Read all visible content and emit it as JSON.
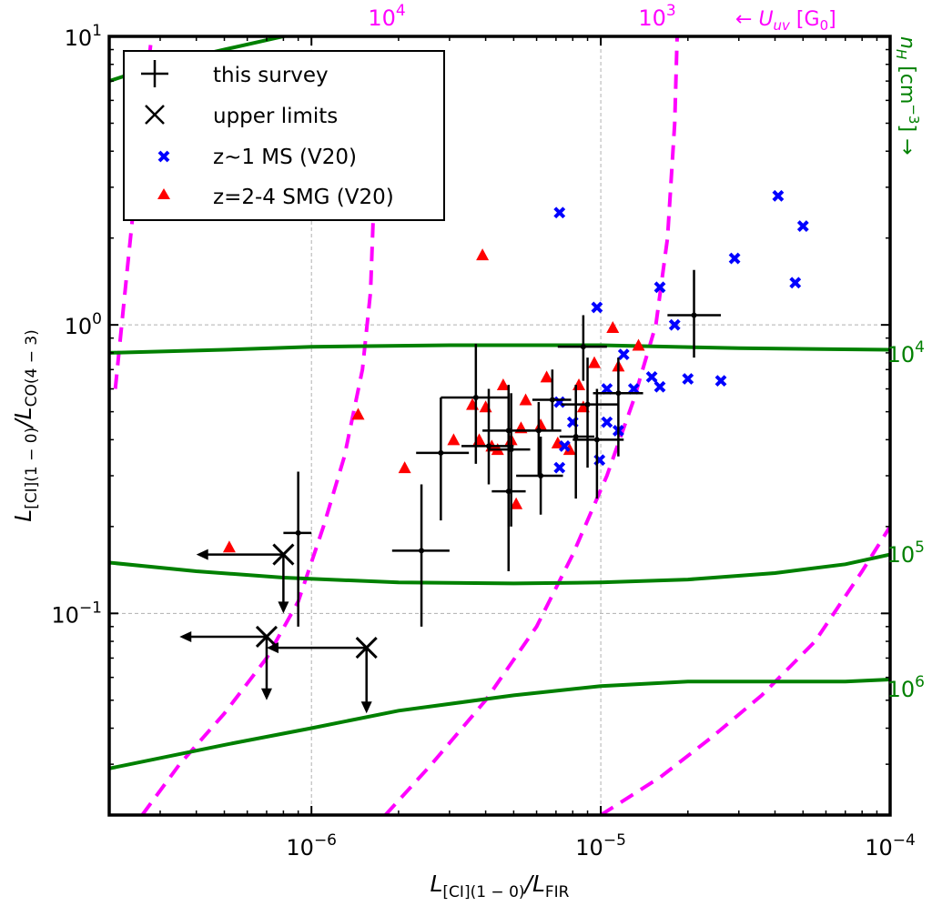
{
  "chart_data": {
    "type": "scatter",
    "x_scale": "log",
    "y_scale": "log",
    "xlim": [
      2e-07,
      0.0001
    ],
    "ylim": [
      0.02,
      10
    ],
    "xlabel": {
      "main": "L",
      "sub1": "[CI](1 − 0)",
      "mid": "/L",
      "sub2": "FIR"
    },
    "ylabel": {
      "main": "L",
      "sub1": "[CI](1 − 0)",
      "mid": "/L",
      "sub2": "CO(4 − 3)"
    },
    "x_ticks": [
      {
        "value": 1e-06,
        "base": "10",
        "exp": "−6"
      },
      {
        "value": 1e-05,
        "base": "10",
        "exp": "−5"
      },
      {
        "value": 0.0001,
        "base": "10",
        "exp": "−4"
      }
    ],
    "y_ticks": [
      {
        "value": 0.1,
        "base": "10",
        "exp": "−1"
      },
      {
        "value": 1,
        "base": "10",
        "exp": "0"
      },
      {
        "value": 10,
        "base": "10",
        "exp": "1"
      }
    ],
    "uv_label": {
      "arrow": "← ",
      "sym": "U",
      "sub": "uv",
      "unit_open": " [G",
      "unit_sub": "0",
      "unit_close": "]"
    },
    "nh_label": {
      "sym": "n",
      "sub": "H",
      "unit_open": " [cm",
      "unit_sup": "−3",
      "unit_close": "] →"
    },
    "colors": {
      "survey": "#000000",
      "ms": "#0000ff",
      "smg": "#ff0000",
      "uv_contour": "#ff00ff",
      "density_contour": "#008000",
      "grid": "#b0b0b0"
    },
    "legend": {
      "position": "upper-left",
      "entries": [
        {
          "marker": "plus",
          "label": "this survey"
        },
        {
          "marker": "x-large",
          "label": "upper limits"
        },
        {
          "marker": "x-blue",
          "label": "z~1 MS (V20)"
        },
        {
          "marker": "triangle-red",
          "label": "z=2-4 SMG (V20)"
        }
      ]
    },
    "uv_contours": [
      {
        "base": "10",
        "exp": "4",
        "points": [
          [
            2.1e-07,
            0.6
          ],
          [
            2.3e-07,
            1.5
          ],
          [
            2.6e-07,
            5
          ],
          [
            2.8e-07,
            10
          ],
          [
            2.8e-07,
            13
          ]
        ],
        "lower_branch": [
          [
            2.6e-07,
            0.02
          ],
          [
            3.5e-07,
            0.03
          ],
          [
            5e-07,
            0.045
          ],
          [
            7e-07,
            0.07
          ],
          [
            9e-07,
            0.11
          ],
          [
            1.1e-06,
            0.2
          ],
          [
            1.3e-06,
            0.35
          ],
          [
            1.5e-06,
            0.7
          ],
          [
            1.6e-06,
            1.3
          ],
          [
            1.65e-06,
            3
          ]
        ]
      },
      {
        "base": "10",
        "exp": "3",
        "points": [
          [
            1.8e-06,
            0.02
          ],
          [
            2.6e-06,
            0.03
          ],
          [
            4e-06,
            0.05
          ],
          [
            6e-06,
            0.09
          ],
          [
            8e-06,
            0.16
          ],
          [
            1.05e-05,
            0.3
          ],
          [
            1.3e-05,
            0.55
          ],
          [
            1.55e-05,
            1.0
          ],
          [
            1.7e-05,
            2
          ],
          [
            1.8e-05,
            5
          ],
          [
            1.85e-05,
            13
          ]
        ]
      },
      {
        "base": "",
        "exp": "",
        "points": [
          [
            1e-05,
            0.02
          ],
          [
            1.6e-05,
            0.027
          ],
          [
            2.4e-05,
            0.037
          ],
          [
            3.6e-05,
            0.052
          ],
          [
            5.5e-05,
            0.08
          ],
          [
            8e-05,
            0.14
          ],
          [
            0.0001,
            0.2
          ]
        ]
      }
    ],
    "density_contours": [
      {
        "base": "",
        "exp": "",
        "points": [
          [
            2e-07,
            7
          ],
          [
            3e-07,
            8
          ],
          [
            5e-07,
            9
          ],
          [
            8e-07,
            10
          ],
          [
            1.2e-06,
            11.5
          ],
          [
            1.8e-06,
            13
          ]
        ]
      },
      {
        "base": "10",
        "exp": "4",
        "points": [
          [
            2e-07,
            0.8
          ],
          [
            5e-07,
            0.82
          ],
          [
            1e-06,
            0.84
          ],
          [
            3e-06,
            0.85
          ],
          [
            1e-05,
            0.85
          ],
          [
            3e-05,
            0.83
          ],
          [
            0.0001,
            0.82
          ]
        ]
      },
      {
        "base": "10",
        "exp": "5",
        "points": [
          [
            2e-07,
            0.15
          ],
          [
            4e-07,
            0.14
          ],
          [
            8e-07,
            0.133
          ],
          [
            2e-06,
            0.128
          ],
          [
            5e-06,
            0.127
          ],
          [
            1e-05,
            0.128
          ],
          [
            2e-05,
            0.131
          ],
          [
            4e-05,
            0.138
          ],
          [
            7e-05,
            0.148
          ],
          [
            0.0001,
            0.16
          ]
        ]
      },
      {
        "base": "10",
        "exp": "6",
        "points": [
          [
            2e-07,
            0.029
          ],
          [
            5e-07,
            0.035
          ],
          [
            1e-06,
            0.04
          ],
          [
            2e-06,
            0.046
          ],
          [
            5e-06,
            0.052
          ],
          [
            1e-05,
            0.056
          ],
          [
            2e-05,
            0.058
          ],
          [
            4e-05,
            0.058
          ],
          [
            7e-05,
            0.058
          ],
          [
            0.0001,
            0.059
          ]
        ]
      }
    ],
    "survey": [
      {
        "x": 9e-07,
        "y": 0.19,
        "xlo": 8e-07,
        "xhi": 1e-06,
        "ylo": 0.09,
        "yhi": 0.31
      },
      {
        "x": 2.4e-06,
        "y": 0.165,
        "xlo": 1.9e-06,
        "xhi": 3e-06,
        "ylo": 0.09,
        "yhi": 0.28
      },
      {
        "x": 2.8e-06,
        "y": 0.36,
        "xlo": 2.3e-06,
        "xhi": 3.5e-06,
        "ylo": 0.21,
        "yhi": 0.56
      },
      {
        "x": 3.7e-06,
        "y": 0.56,
        "xlo": 2.8e-06,
        "xhi": 4.8e-06,
        "ylo": 0.33,
        "yhi": 0.86
      },
      {
        "x": 4.1e-06,
        "y": 0.38,
        "xlo": 3.3e-06,
        "xhi": 5e-06,
        "ylo": 0.28,
        "yhi": 0.6
      },
      {
        "x": 4.8e-06,
        "y": 0.43,
        "xlo": 3.9e-06,
        "xhi": 5.7e-06,
        "ylo": 0.2,
        "yhi": 0.62
      },
      {
        "x": 4.8e-06,
        "y": 0.265,
        "xlo": 4.2e-06,
        "xhi": 5.5e-06,
        "ylo": 0.14,
        "yhi": 0.42
      },
      {
        "x": 4.9e-06,
        "y": 0.37,
        "xlo": 4.1e-06,
        "xhi": 5.7e-06,
        "ylo": 0.2,
        "yhi": 0.58
      },
      {
        "x": 6.1e-06,
        "y": 0.43,
        "xlo": 5.1e-06,
        "xhi": 7.3e-06,
        "ylo": 0.3,
        "yhi": 0.54
      },
      {
        "x": 6.2e-06,
        "y": 0.3,
        "xlo": 5.1e-06,
        "xhi": 7.4e-06,
        "ylo": 0.22,
        "yhi": 0.41
      },
      {
        "x": 6.8e-06,
        "y": 0.55,
        "xlo": 5.8e-06,
        "xhi": 7.9e-06,
        "ylo": 0.43,
        "yhi": 0.7
      },
      {
        "x": 8.2e-06,
        "y": 0.41,
        "xlo": 7.2e-06,
        "xhi": 9.5e-06,
        "ylo": 0.25,
        "yhi": 0.62
      },
      {
        "x": 8.7e-06,
        "y": 0.84,
        "xlo": 7.1e-06,
        "xhi": 1.05e-05,
        "ylo": 0.64,
        "yhi": 1.08
      },
      {
        "x": 9e-06,
        "y": 0.53,
        "xlo": 7.3e-06,
        "xhi": 1.15e-05,
        "ylo": 0.32,
        "yhi": 0.77
      },
      {
        "x": 9.7e-06,
        "y": 0.4,
        "xlo": 8e-06,
        "xhi": 1.2e-05,
        "ylo": 0.25,
        "yhi": 0.6
      },
      {
        "x": 1.15e-05,
        "y": 0.58,
        "xlo": 9.4e-06,
        "xhi": 1.4e-05,
        "ylo": 0.35,
        "yhi": 0.77
      },
      {
        "x": 2.1e-05,
        "y": 1.08,
        "xlo": 1.7e-05,
        "xhi": 2.6e-05,
        "ylo": 0.77,
        "yhi": 1.55
      }
    ],
    "upper_limits": [
      {
        "x": 8e-07,
        "y": 0.16,
        "x_arrow_to": 4e-07,
        "y_arrow_to": 0.1
      },
      {
        "x": 7e-07,
        "y": 0.083,
        "x_arrow_to": 3.5e-07,
        "y_arrow_to": 0.05
      },
      {
        "x": 1.55e-06,
        "y": 0.076,
        "x_arrow_to": 7e-07,
        "y_arrow_to": 0.045
      }
    ],
    "ms_points": [
      [
        7.2e-06,
        2.45
      ],
      [
        9.7e-06,
        1.15
      ],
      [
        1.6e-05,
        1.35
      ],
      [
        1.8e-05,
        1.0
      ],
      [
        2.9e-05,
        1.7
      ],
      [
        4.1e-05,
        2.8
      ],
      [
        5e-05,
        2.2
      ],
      [
        4.7e-05,
        1.4
      ],
      [
        2e-05,
        0.65
      ],
      [
        2.6e-05,
        0.64
      ],
      [
        1.5e-05,
        0.66
      ],
      [
        1.6e-05,
        0.61
      ],
      [
        1.3e-05,
        0.6
      ],
      [
        1.2e-05,
        0.79
      ],
      [
        1.05e-05,
        0.6
      ],
      [
        1.05e-05,
        0.46
      ],
      [
        1.15e-05,
        0.43
      ],
      [
        8e-06,
        0.46
      ],
      [
        7.5e-06,
        0.38
      ],
      [
        7.2e-06,
        0.54
      ],
      [
        9.9e-06,
        0.34
      ],
      [
        7.2e-06,
        0.32
      ]
    ],
    "smg_points": [
      [
        3.9e-06,
        1.75
      ],
      [
        5.2e-07,
        0.17
      ],
      [
        1.45e-06,
        0.49
      ],
      [
        2.1e-06,
        0.32
      ],
      [
        3.1e-06,
        0.4
      ],
      [
        3.6e-06,
        0.53
      ],
      [
        3.8e-06,
        0.4
      ],
      [
        4e-06,
        0.52
      ],
      [
        4.2e-06,
        0.38
      ],
      [
        4.4e-06,
        0.37
      ],
      [
        4.6e-06,
        0.62
      ],
      [
        4.9e-06,
        0.4
      ],
      [
        5.1e-06,
        0.24
      ],
      [
        5.3e-06,
        0.44
      ],
      [
        5.5e-06,
        0.55
      ],
      [
        6.2e-06,
        0.45
      ],
      [
        6.5e-06,
        0.66
      ],
      [
        7.1e-06,
        0.39
      ],
      [
        7.8e-06,
        0.37
      ],
      [
        8.4e-06,
        0.62
      ],
      [
        8.7e-06,
        0.52
      ],
      [
        9.5e-06,
        0.74
      ],
      [
        1.1e-05,
        0.98
      ],
      [
        1.15e-05,
        0.72
      ],
      [
        1.35e-05,
        0.85
      ]
    ]
  }
}
